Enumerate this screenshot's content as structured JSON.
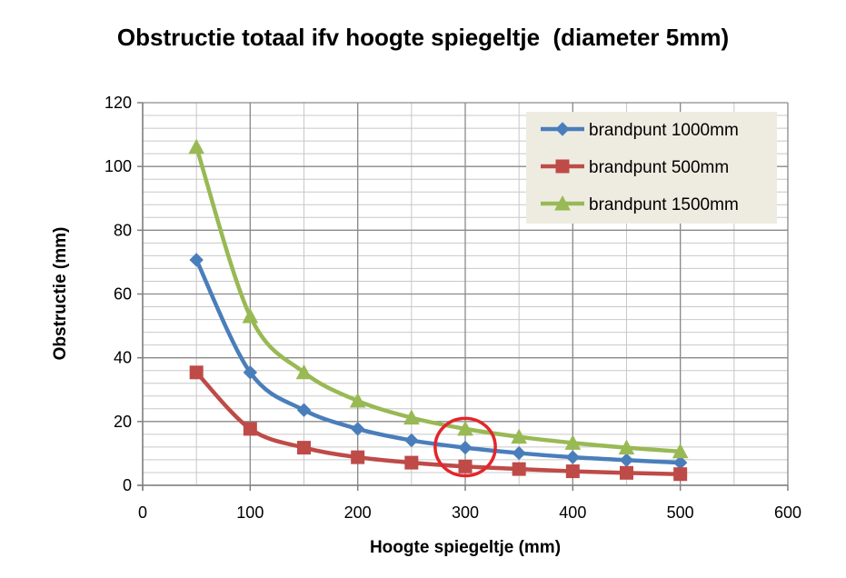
{
  "chart_data": {
    "type": "line",
    "title": "Obstructie totaal ifv hoogte spiegeltje  (diameter 5mm)",
    "xlabel": "Hoogte spiegeltje (mm)",
    "ylabel": "Obstructie (mm)",
    "xlim": [
      0,
      600
    ],
    "ylim": [
      0,
      120
    ],
    "x_ticks": [
      0,
      100,
      200,
      300,
      400,
      500,
      600
    ],
    "y_ticks": [
      0,
      20,
      40,
      60,
      80,
      100,
      120
    ],
    "x_ticks_label": [
      "0",
      "100",
      "200",
      "300",
      "400",
      "500",
      "600"
    ],
    "y_ticks_label": [
      "0",
      "20",
      "40",
      "60",
      "80",
      "100",
      "120"
    ],
    "grid": true,
    "legend_position": "top-right",
    "x": [
      50,
      100,
      150,
      200,
      250,
      300,
      350,
      400,
      450,
      500
    ],
    "series": [
      {
        "name": "brandpunt 1000mm",
        "color": "#4a7ebb",
        "marker": "diamond",
        "values": [
          70.7,
          35.4,
          23.6,
          17.7,
          14.1,
          11.8,
          10.1,
          8.8,
          7.9,
          7.1
        ]
      },
      {
        "name": "brandpunt 500mm",
        "color": "#be4b48",
        "marker": "square",
        "values": [
          35.4,
          17.7,
          11.8,
          8.8,
          7.1,
          5.9,
          5.1,
          4.4,
          3.9,
          3.5
        ]
      },
      {
        "name": "brandpunt 1500mm",
        "color": "#98b954",
        "marker": "triangle",
        "values": [
          106.1,
          53.0,
          35.4,
          26.5,
          21.2,
          17.7,
          15.2,
          13.3,
          11.8,
          10.6
        ]
      }
    ],
    "annotation": {
      "type": "ellipse",
      "color": "#e3262b",
      "x": 300,
      "y": 12,
      "rx": 28,
      "ry": 9
    }
  }
}
